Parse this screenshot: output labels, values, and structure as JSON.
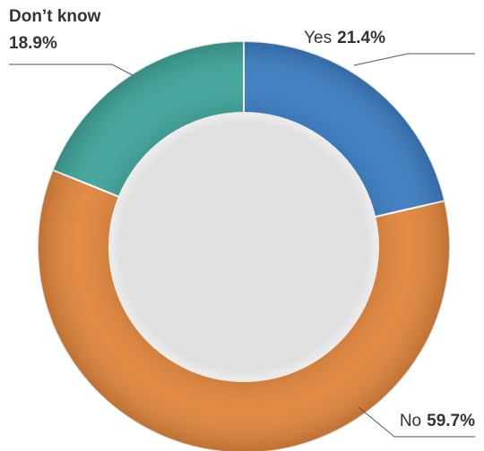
{
  "chart_data": {
    "type": "donut",
    "categories": [
      "Yes",
      "No",
      "Don’t know"
    ],
    "values": [
      21.4,
      59.7,
      18.9
    ],
    "value_labels": [
      "21.4%",
      "59.7%",
      "18.9%"
    ],
    "colors": [
      "#3b7cc2",
      "#e0853c",
      "#3ea398"
    ]
  }
}
